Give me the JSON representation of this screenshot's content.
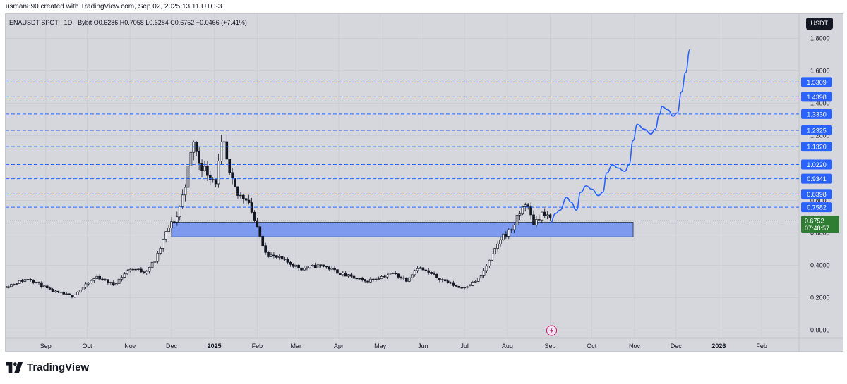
{
  "header": {
    "caption": "usman890 created with TradingView.com, Sep 02, 2025 13:11 UTC-3",
    "legend": "ENAUSDT SPOT · 1D · Bybit  O0.6286  H0.7058  L0.6284  C0.6752  +0.0466 (+7.41%)",
    "currency": "USDT"
  },
  "brand": {
    "name": "TradingView",
    "logo_icon": "tradingview-logo-icon"
  },
  "flash_icon": "lightning-icon",
  "colors": {
    "background": "#d5d7dd",
    "candle": "#131722",
    "level_line": "#2962ff",
    "level_badge": "#2962ff",
    "zone_fill": "#6f8ff2",
    "projection": "#2962ff",
    "price_badge": "#2e7d32",
    "price_line": "#8a8f99"
  },
  "chart_data": {
    "type": "candlestick",
    "title": "ENAUSDT SPOT · 1D · Bybit",
    "ylim": [
      -0.05,
      1.95
    ],
    "y_ticks": [
      {
        "value": 0.0,
        "label": "0.0000"
      },
      {
        "value": 0.2,
        "label": "0.2000"
      },
      {
        "value": 0.4,
        "label": "0.4000"
      },
      {
        "value": 0.6,
        "label": "0.6000"
      },
      {
        "value": 0.8,
        "label": "0.8000"
      },
      {
        "value": 1.2,
        "label": "1.2000"
      },
      {
        "value": 1.4,
        "label": "1.4000"
      },
      {
        "value": 1.6,
        "label": "1.6000"
      },
      {
        "value": 1.8,
        "label": "1.8000"
      }
    ],
    "x_ticks": [
      {
        "label": "Sep",
        "date": "2024-09-01",
        "bold": false
      },
      {
        "label": "Oct",
        "date": "2024-10-01",
        "bold": false
      },
      {
        "label": "Nov",
        "date": "2024-11-01",
        "bold": false
      },
      {
        "label": "Dec",
        "date": "2024-12-01",
        "bold": false
      },
      {
        "label": "2025",
        "date": "2025-01-01",
        "bold": true
      },
      {
        "label": "Feb",
        "date": "2025-02-01",
        "bold": false
      },
      {
        "label": "Mar",
        "date": "2025-03-01",
        "bold": false
      },
      {
        "label": "Apr",
        "date": "2025-04-01",
        "bold": false
      },
      {
        "label": "May",
        "date": "2025-05-01",
        "bold": false
      },
      {
        "label": "Jun",
        "date": "2025-06-01",
        "bold": false
      },
      {
        "label": "Jul",
        "date": "2025-07-01",
        "bold": false
      },
      {
        "label": "Aug",
        "date": "2025-08-01",
        "bold": false
      },
      {
        "label": "Sep",
        "date": "2025-09-01",
        "bold": false
      },
      {
        "label": "Oct",
        "date": "2025-10-01",
        "bold": false
      },
      {
        "label": "Nov",
        "date": "2025-11-01",
        "bold": false
      },
      {
        "label": "Dec",
        "date": "2025-12-01",
        "bold": false
      },
      {
        "label": "2026",
        "date": "2026-01-01",
        "bold": true
      },
      {
        "label": "Feb",
        "date": "2026-02-01",
        "bold": false
      }
    ],
    "x_range": [
      "2024-08-03",
      "2026-02-28"
    ],
    "levels": [
      {
        "value": 1.5309,
        "label": "1.5309"
      },
      {
        "value": 1.4398,
        "label": "1.4398"
      },
      {
        "value": 1.333,
        "label": "1.3330"
      },
      {
        "value": 1.2325,
        "label": "1.2325"
      },
      {
        "value": 1.132,
        "label": "1.1320"
      },
      {
        "value": 1.022,
        "label": "1.0220"
      },
      {
        "value": 0.9341,
        "label": "0.9341"
      },
      {
        "value": 0.8398,
        "label": "0.8398"
      },
      {
        "value": 0.7582,
        "label": "0.7582"
      }
    ],
    "last_price": {
      "value": 0.6752,
      "label": "0.6752",
      "countdown": "07:48:57"
    },
    "support_zone": {
      "low": 0.575,
      "high": 0.665,
      "start": "2024-12-01",
      "end": "2025-10-31"
    },
    "projection_path": [
      [
        "2025-09-01",
        0.66
      ],
      [
        "2025-09-05",
        0.72
      ],
      [
        "2025-09-08",
        0.74
      ],
      [
        "2025-09-13",
        0.82
      ],
      [
        "2025-09-16",
        0.79
      ],
      [
        "2025-09-20",
        0.74
      ],
      [
        "2025-09-23",
        0.85
      ],
      [
        "2025-09-27",
        0.89
      ],
      [
        "2025-10-01",
        0.87
      ],
      [
        "2025-10-06",
        0.83
      ],
      [
        "2025-10-09",
        0.85
      ],
      [
        "2025-10-12",
        0.97
      ],
      [
        "2025-10-16",
        1.02
      ],
      [
        "2025-10-20",
        1.0
      ],
      [
        "2025-10-25",
        0.98
      ],
      [
        "2025-10-28",
        1.02
      ],
      [
        "2025-10-31",
        1.17
      ],
      [
        "2025-11-03",
        1.27
      ],
      [
        "2025-11-08",
        1.24
      ],
      [
        "2025-11-13",
        1.21
      ],
      [
        "2025-11-16",
        1.24
      ],
      [
        "2025-11-19",
        1.33
      ],
      [
        "2025-11-21",
        1.38
      ],
      [
        "2025-11-25",
        1.36
      ],
      [
        "2025-11-29",
        1.32
      ],
      [
        "2025-12-02",
        1.34
      ],
      [
        "2025-12-05",
        1.47
      ],
      [
        "2025-12-08",
        1.59
      ],
      [
        "2025-12-11",
        1.73
      ]
    ],
    "price_anchors": [
      [
        "2024-08-03",
        0.27
      ],
      [
        "2024-08-20",
        0.32
      ],
      [
        "2024-09-05",
        0.24
      ],
      [
        "2024-09-20",
        0.21
      ],
      [
        "2024-10-08",
        0.33
      ],
      [
        "2024-10-20",
        0.28
      ],
      [
        "2024-11-01",
        0.38
      ],
      [
        "2024-11-12",
        0.36
      ],
      [
        "2024-11-20",
        0.44
      ],
      [
        "2024-11-28",
        0.62
      ],
      [
        "2024-12-05",
        0.7
      ],
      [
        "2024-12-10",
        0.86
      ],
      [
        "2024-12-17",
        1.17
      ],
      [
        "2024-12-20",
        1.05
      ],
      [
        "2024-12-26",
        0.98
      ],
      [
        "2025-01-02",
        0.92
      ],
      [
        "2025-01-07",
        1.18
      ],
      [
        "2025-01-12",
        0.95
      ],
      [
        "2025-01-18",
        0.83
      ],
      [
        "2025-01-25",
        0.82
      ],
      [
        "2025-02-01",
        0.62
      ],
      [
        "2025-02-08",
        0.47
      ],
      [
        "2025-02-20",
        0.43
      ],
      [
        "2025-03-05",
        0.38
      ],
      [
        "2025-03-20",
        0.4
      ],
      [
        "2025-04-05",
        0.34
      ],
      [
        "2025-04-20",
        0.3
      ],
      [
        "2025-05-10",
        0.35
      ],
      [
        "2025-05-20",
        0.31
      ],
      [
        "2025-05-28",
        0.39
      ],
      [
        "2025-06-10",
        0.33
      ],
      [
        "2025-06-20",
        0.29
      ],
      [
        "2025-06-28",
        0.26
      ],
      [
        "2025-07-05",
        0.28
      ],
      [
        "2025-07-12",
        0.32
      ],
      [
        "2025-07-20",
        0.44
      ],
      [
        "2025-07-28",
        0.58
      ],
      [
        "2025-08-03",
        0.61
      ],
      [
        "2025-08-10",
        0.72
      ],
      [
        "2025-08-14",
        0.79
      ],
      [
        "2025-08-20",
        0.66
      ],
      [
        "2025-08-26",
        0.72
      ],
      [
        "2025-09-02",
        0.6752
      ]
    ]
  }
}
